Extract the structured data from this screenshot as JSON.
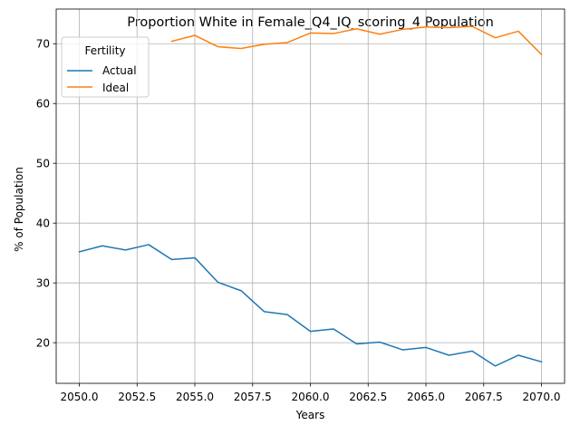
{
  "chart_data": {
    "type": "line",
    "title": "Proportion White in Female_Q4_IQ_scoring_4 Population",
    "xlabel": "Years",
    "ylabel": "% of Population",
    "xlim": [
      2049.0,
      2071.0
    ],
    "ylim": [
      13.2,
      75.8
    ],
    "xticks": [
      2050.0,
      2052.5,
      2055.0,
      2057.5,
      2060.0,
      2062.5,
      2065.0,
      2067.5,
      2070.0
    ],
    "xtick_labels": [
      "2050.0",
      "2052.5",
      "2055.0",
      "2057.5",
      "2060.0",
      "2062.5",
      "2065.0",
      "2067.5",
      "2070.0"
    ],
    "yticks": [
      20,
      30,
      40,
      50,
      60,
      70
    ],
    "ytick_labels": [
      "20",
      "30",
      "40",
      "50",
      "60",
      "70"
    ],
    "grid": true,
    "legend": {
      "title": "Fertility",
      "placement": "upper-left"
    },
    "series": [
      {
        "name": "Actual",
        "color": "#1f77b4",
        "x": [
          2050,
          2051,
          2052,
          2053,
          2054,
          2055,
          2056,
          2057,
          2058,
          2059,
          2060,
          2061,
          2062,
          2063,
          2064,
          2065,
          2066,
          2067,
          2068,
          2069,
          2070
        ],
        "y": [
          35.2,
          36.2,
          35.5,
          36.4,
          33.9,
          34.2,
          30.1,
          28.7,
          25.2,
          24.7,
          21.9,
          22.3,
          19.8,
          20.1,
          18.8,
          19.2,
          17.9,
          18.6,
          16.1,
          17.9,
          16.8
        ]
      },
      {
        "name": "Ideal",
        "color": "#ff7f0e",
        "x": [
          2054,
          2055,
          2056,
          2057,
          2058,
          2059,
          2060,
          2061,
          2062,
          2063,
          2064,
          2065,
          2066,
          2067,
          2068,
          2069,
          2070
        ],
        "y": [
          70.4,
          71.4,
          69.5,
          69.2,
          69.9,
          70.2,
          71.8,
          71.7,
          72.5,
          71.6,
          72.4,
          72.8,
          72.7,
          72.9,
          71.0,
          72.1,
          68.2
        ]
      }
    ]
  }
}
